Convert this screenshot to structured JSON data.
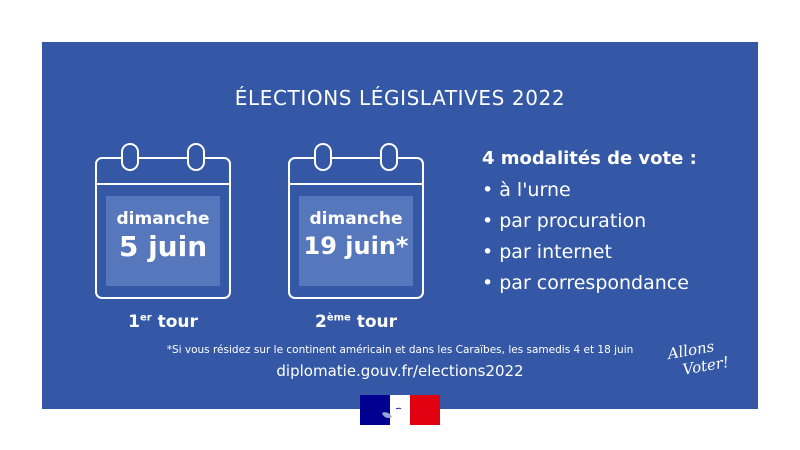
{
  "title": "ÉLECTIONS LÉGISLATIVES 2022",
  "first_round": {
    "day": "dimanche",
    "date": "5 juin",
    "tour_num": "1",
    "tour_sup": "er",
    "tour_word": "tour"
  },
  "second_round": {
    "day": "dimanche",
    "date": "19 juin*",
    "tour_num": "2",
    "tour_sup": "ème",
    "tour_word": "tour"
  },
  "modes": {
    "title": "4 modalités de vote :",
    "items": [
      "• à l'urne",
      "• par procuration",
      "• par internet",
      "• par correspondance"
    ]
  },
  "footnote": "*Si vous résidez sur le continent américain et dans les Caraïbes, les samedis 4 et 18 juin",
  "url": "diplomatie.gouv.fr/elections2022",
  "slogan": {
    "line1": "Allons",
    "line2": "Voter!"
  },
  "colors": {
    "background": "#3558a6",
    "highlight": "#5777bd",
    "flag_blue": "#000091",
    "flag_red": "#e1000f"
  },
  "icons": {
    "calendar": "calendar-icon",
    "logo": "french-republic-logo"
  }
}
